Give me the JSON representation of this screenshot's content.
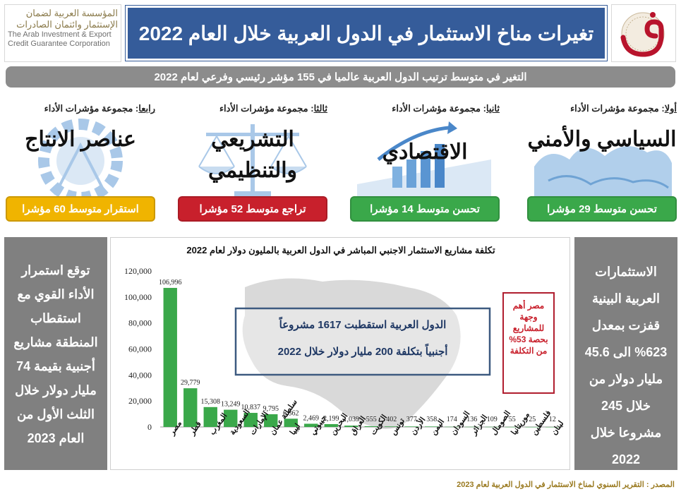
{
  "header": {
    "org_ar_line1": "المؤسسة العربية لضمان",
    "org_ar_line2": "الإستثمار وائتمان الصادرات",
    "org_en_line1": "The Arab Investment & Export",
    "org_en_line2": "Credit Guarantee Corporation",
    "title": "تغيرات مناخ الاستثمار في الدول العربية خلال العام 2022",
    "logo_icon": "dhaman-logo-icon"
  },
  "subtitle": "التغير في متوسط ترتيب الدول العربية عالميا في 155 مؤشر رئيسي وفرعي  لعام 2022",
  "groups": [
    {
      "label_prefix": "أولا",
      "label_text": ": مجموعة مؤشرات الأداء",
      "name": "السياسي والأمني",
      "result": "تحسن متوسط 29 مؤشرا",
      "color": "#3aa84a",
      "icon": "globe-map-icon"
    },
    {
      "label_prefix": "ثانيا",
      "label_text": ": مجموعة مؤشرات الأداء",
      "name": "الاقتصادي",
      "result": "تحسن متوسط 14 مؤشرا",
      "color": "#3aa84a",
      "icon": "growth-chart-icon"
    },
    {
      "label_prefix": "ثالثا",
      "label_text": ": مجموعة مؤشرات الأداء",
      "name": "التشريعي والتنظيمي",
      "result": "تراجع متوسط 52 مؤشرا",
      "color": "#c8202c",
      "icon": "scales-icon"
    },
    {
      "label_prefix": "رابعا",
      "label_text": ": مجموعة مؤشرات الأداء",
      "name": "عناصر الانتاج",
      "result": "استقرار متوسط 60 مؤشرا",
      "color": "#f0b400",
      "icon": "gear-wheat-icon"
    }
  ],
  "left_panel": "توقع استمرار الأداء القوي مع استقطاب المنطقة مشاريع أجنبية بقيمة 74 مليار دولار خلال الثلث الأول من العام 2023",
  "right_panel": "الاستثمارات العربية البينية قفزت بمعدل 623% الى 45.6 مليار دولار من خلال 245 مشروعا خلال 2022",
  "chart_data": {
    "type": "bar",
    "title": "تكلفة مشاريع الاستثمار الاجنبي المباشر في الدول العربية بالمليون دولار لعام 2022",
    "categories": [
      "مصر",
      "قطر",
      "المغرب",
      "السعودية",
      "الإمارات",
      "سلطنة عمان",
      "ليبيا",
      "جيبوتي",
      "البحرين",
      "العراق",
      "الكويت",
      "تونس",
      "الأردن",
      "اليمن",
      "السودان",
      "الجزائر",
      "الصومال",
      "موريتانيا",
      "فلسطين",
      "لبنان"
    ],
    "values": [
      106996,
      29779,
      15308,
      13249,
      10837,
      9795,
      6362,
      2469,
      2199,
      1039,
      555,
      402,
      377,
      358,
      174,
      136,
      109,
      55,
      25,
      12
    ],
    "value_labels": [
      "106,996",
      "29,779",
      "15,308",
      "13,249",
      "10,837",
      "9,795",
      "6,362",
      "2,469",
      "2,199",
      "1,039",
      "555",
      "402",
      "377",
      "358",
      "174",
      "136",
      "109",
      "55",
      "25",
      "12"
    ],
    "yticks": [
      "0",
      "20,000",
      "40,000",
      "60,000",
      "80,000",
      "100,000",
      "120,000"
    ],
    "ylim": [
      0,
      120000
    ],
    "bar_color": "#3aa84a",
    "grid": false,
    "annotation_box": {
      "line1": "الدول العربية استقطبت 1617 مشروعاً",
      "line2": "أجنبياً بتكلفة 200 مليار دولار خلال 2022"
    },
    "egypt_note": "مصر أهم وجهة للمشاريع بحصة 53% من التكلفة"
  },
  "source": "المصدر : التقرير السنوي لمناخ الاستثمار في الدول العربية لعام 2023"
}
